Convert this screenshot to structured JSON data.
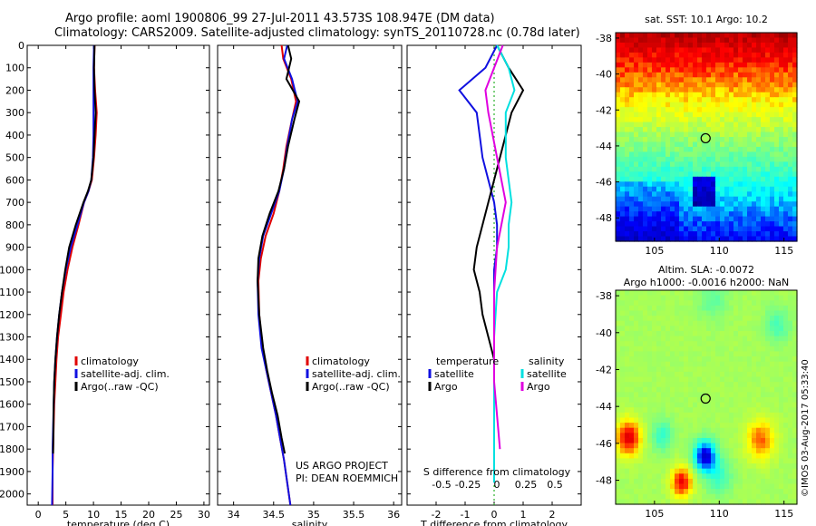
{
  "title": {
    "line1": "Argo profile: aoml 1900806_99 27-Jul-2011 43.573S 108.947E (DM data)",
    "line2": "Climatology: CARS2009. Satellite-adjusted climatology: synTS_20110728.nc (0.78d later)"
  },
  "colors": {
    "climatology": "#e00000",
    "satellite": "#1010e0",
    "argo": "#000000",
    "cyan": "#00e0e0",
    "magenta": "#e000e0"
  },
  "chart_data": [
    {
      "type": "line",
      "xlabel": "temperature (deg C)",
      "ylabel": "",
      "xlim": [
        -2,
        31
      ],
      "ylim": [
        2050,
        0
      ],
      "xticks": [
        0,
        5,
        10,
        15,
        20,
        25,
        30
      ],
      "yticks": [
        0,
        100,
        200,
        300,
        400,
        500,
        600,
        700,
        800,
        900,
        1000,
        1100,
        1200,
        1300,
        1400,
        1500,
        1600,
        1700,
        1800,
        1900,
        2000
      ],
      "legend": [
        "climatology",
        "satellite-adj. clim.",
        "Argo(..raw -QC)"
      ],
      "series": [
        {
          "name": "climatology",
          "color": "#e00000",
          "x": [
            10.2,
            10.1,
            10.3,
            10.6,
            10.4,
            10.1,
            9.7,
            9.1,
            8.3,
            7.3,
            6.2,
            5.3,
            4.6,
            4.1,
            3.6,
            3.3,
            3.1,
            2.9,
            2.8,
            2.7,
            2.6,
            2.6
          ],
          "y": [
            0,
            100,
            200,
            300,
            400,
            500,
            600,
            650,
            700,
            800,
            900,
            1000,
            1100,
            1200,
            1300,
            1400,
            1500,
            1600,
            1700,
            1800,
            1900,
            2050
          ]
        },
        {
          "name": "satellite-adj. clim.",
          "color": "#1010e0",
          "x": [
            10.1,
            10.0,
            10.0,
            10.0,
            10.0,
            9.9,
            9.6,
            9.1,
            8.3,
            7.1,
            5.9,
            5.0,
            4.3,
            3.8,
            3.4,
            3.1,
            2.9,
            2.8,
            2.7,
            2.6,
            2.6,
            2.5
          ],
          "y": [
            0,
            100,
            200,
            300,
            400,
            500,
            600,
            650,
            700,
            800,
            900,
            1000,
            1100,
            1200,
            1300,
            1400,
            1500,
            1600,
            1700,
            1800,
            1900,
            2050
          ]
        },
        {
          "name": "Argo(..raw -QC)",
          "color": "#000000",
          "x": [
            10.2,
            10.1,
            10.2,
            10.4,
            10.2,
            10.0,
            9.6,
            9.0,
            8.2,
            6.8,
            5.6,
            4.9,
            4.3,
            3.8,
            3.4,
            3.1,
            2.9,
            2.8,
            2.7
          ],
          "y": [
            0,
            100,
            200,
            300,
            400,
            500,
            600,
            650,
            700,
            800,
            900,
            1000,
            1100,
            1200,
            1300,
            1400,
            1500,
            1600,
            1820
          ]
        }
      ]
    },
    {
      "type": "line",
      "xlabel": "salinity",
      "xlim": [
        33.8,
        36.1
      ],
      "ylim": [
        2050,
        0
      ],
      "xticks": [
        34,
        34.5,
        35,
        35.5,
        36
      ],
      "legend": [
        "climatology",
        "satellite-adj. clim.",
        "Argo(..raw -QC)"
      ],
      "annotation": [
        "US ARGO PROJECT",
        "PI: DEAN ROEMMICH"
      ],
      "series": [
        {
          "name": "climatology",
          "color": "#e00000",
          "x": [
            34.6,
            34.62,
            34.72,
            34.78,
            34.73,
            34.66,
            34.62,
            34.57,
            34.5,
            34.4,
            34.34,
            34.31,
            34.32,
            34.36,
            34.41,
            34.47,
            34.53,
            34.58,
            34.63,
            34.67,
            34.71
          ],
          "y": [
            0,
            60,
            150,
            250,
            330,
            450,
            550,
            650,
            750,
            850,
            950,
            1050,
            1200,
            1350,
            1450,
            1550,
            1650,
            1750,
            1850,
            1950,
            2050
          ]
        },
        {
          "name": "satellite-adj. clim.",
          "color": "#1010e0",
          "x": [
            34.67,
            34.63,
            34.73,
            34.8,
            34.73,
            34.67,
            34.63,
            34.57,
            34.47,
            34.37,
            34.32,
            34.3,
            34.31,
            34.35,
            34.41,
            34.47,
            34.53,
            34.58,
            34.63,
            34.67,
            34.71
          ],
          "y": [
            0,
            60,
            150,
            250,
            330,
            450,
            550,
            650,
            750,
            850,
            950,
            1050,
            1200,
            1350,
            1450,
            1550,
            1650,
            1750,
            1850,
            1950,
            2050
          ]
        },
        {
          "name": "Argo(..raw -QC)",
          "color": "#000000",
          "x": [
            34.68,
            34.72,
            34.66,
            34.82,
            34.76,
            34.68,
            34.63,
            34.56,
            34.45,
            34.36,
            34.31,
            34.3,
            34.32,
            34.37,
            34.42,
            34.48,
            34.55,
            34.6,
            34.64
          ],
          "y": [
            0,
            60,
            150,
            250,
            330,
            450,
            550,
            650,
            750,
            850,
            950,
            1050,
            1200,
            1350,
            1450,
            1550,
            1650,
            1750,
            1820
          ]
        }
      ]
    },
    {
      "type": "line",
      "xlabel": "T difference from climatology",
      "top_label": "S difference from climatology",
      "xlim": [
        -3,
        3
      ],
      "ylim": [
        2050,
        0
      ],
      "xticks": [
        -2,
        -1,
        0,
        1,
        2
      ],
      "top_ticks": [
        "-0.5",
        "-0.25",
        "0",
        "0.25",
        "0.5"
      ],
      "legend_headers": {
        "temperature": "temperature",
        "salinity": "salinity"
      },
      "legend": [
        "satellite",
        "Argo",
        "satellite",
        "Argo"
      ],
      "series": [
        {
          "name": "temperature satellite",
          "color": "#1010e0",
          "x": [
            0.1,
            -0.3,
            -1.2,
            -0.6,
            -0.4,
            -0.2,
            0.0,
            0.1,
            0.1,
            0.0,
            0.0,
            0.0,
            0.0,
            0.0,
            0.0,
            0.0,
            0.0,
            0.0,
            0.0
          ],
          "y": [
            0,
            100,
            200,
            300,
            500,
            600,
            700,
            800,
            900,
            1000,
            1100,
            1200,
            1300,
            1400,
            1500,
            1600,
            1700,
            1800,
            1900
          ]
        },
        {
          "name": "temperature Argo",
          "color": "#000000",
          "x": [
            0.1,
            0.5,
            1.0,
            0.6,
            0.2,
            -0.2,
            -0.4,
            -0.6,
            -0.7,
            -0.5,
            -0.4,
            -0.2,
            0.0,
            0.0,
            0.0,
            0.0
          ],
          "y": [
            0,
            100,
            200,
            300,
            500,
            700,
            800,
            900,
            1000,
            1100,
            1200,
            1300,
            1400,
            1500,
            1600,
            1800
          ]
        },
        {
          "name": "salinity satellite",
          "color": "#00e0e0",
          "x": [
            0.1,
            0.5,
            0.7,
            0.4,
            0.4,
            0.6,
            0.5,
            0.5,
            0.4,
            0.1,
            0.0,
            0.0,
            0.0,
            0.0
          ],
          "y": [
            0,
            100,
            200,
            300,
            500,
            700,
            800,
            900,
            1000,
            1100,
            1300,
            1500,
            1700,
            1950
          ]
        },
        {
          "name": "salinity Argo",
          "color": "#e000e0",
          "x": [
            0.3,
            -0.3,
            -0.2,
            0.1,
            0.4,
            0.1,
            0.0,
            0.0,
            0.0,
            0.2
          ],
          "y": [
            0,
            200,
            300,
            500,
            700,
            900,
            1100,
            1300,
            1500,
            1800
          ]
        }
      ]
    },
    {
      "type": "heatmap",
      "title": "sat. SST: 10.1 Argo: 10.2",
      "xlim": [
        102,
        116
      ],
      "ylim": [
        -49.3,
        -37.7
      ],
      "xticks": [
        105,
        110,
        115
      ],
      "yticks": [
        -38,
        -40,
        -42,
        -44,
        -46,
        -48
      ],
      "marker": {
        "lon": 108.947,
        "lat": -43.573
      }
    },
    {
      "type": "heatmap",
      "title": "Altim. SLA: -0.0072",
      "subtitle": "Argo h1000: -0.0016 h2000: NaN",
      "xlim": [
        102,
        116
      ],
      "ylim": [
        -49.3,
        -37.7
      ],
      "xticks": [
        105,
        110,
        115
      ],
      "yticks": [
        -38,
        -40,
        -42,
        -44,
        -46,
        -48
      ],
      "marker": {
        "lon": 108.947,
        "lat": -43.573
      }
    }
  ],
  "stamp": "©IMOS 03-Aug-2017 05:33:40"
}
